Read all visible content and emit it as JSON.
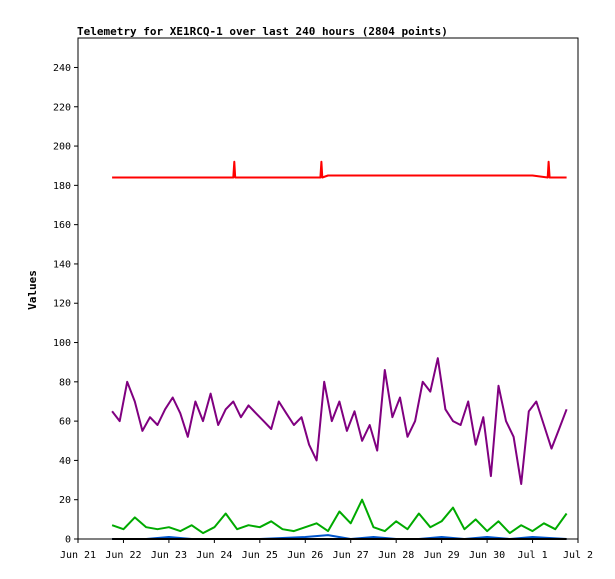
{
  "chart_data": {
    "type": "line",
    "title": "Telemetry for XE1RCQ-1 over last 240 hours (2804 points)",
    "xlabel": "",
    "ylabel": "Values",
    "xlim": [
      "2023-06-21",
      "2023-07-02"
    ],
    "ylim": [
      0,
      255
    ],
    "x_ticks": [
      "Jun 21",
      "Jun 22",
      "Jun 23",
      "Jun 24",
      "Jun 25",
      "Jun 26",
      "Jun 27",
      "Jun 28",
      "Jun 29",
      "Jun 30",
      "Jul 1",
      "Jul 2"
    ],
    "y_ticks": [
      0,
      20,
      40,
      60,
      80,
      100,
      120,
      140,
      160,
      180,
      200,
      220,
      240
    ],
    "grid": false,
    "legend": "none",
    "series": [
      {
        "color": "#ff0000",
        "x": [
          "2023-06-21T18:00",
          "2023-06-22T00:00",
          "2023-06-22T12:00",
          "2023-06-23T00:00",
          "2023-06-23T12:00",
          "2023-06-24T00:00",
          "2023-06-24T10:00",
          "2023-06-24T10:30",
          "2023-06-24T11:00",
          "2023-06-25T00:00",
          "2023-06-25T12:00",
          "2023-06-26T00:00",
          "2023-06-26T08:00",
          "2023-06-26T08:30",
          "2023-06-26T09:00",
          "2023-06-26T12:00",
          "2023-06-27T00:00",
          "2023-06-27T12:00",
          "2023-06-28T00:00",
          "2023-06-28T12:00",
          "2023-06-29T00:00",
          "2023-06-29T12:00",
          "2023-06-30T00:00",
          "2023-06-30T12:00",
          "2023-07-01T00:00",
          "2023-07-01T08:00",
          "2023-07-01T08:30",
          "2023-07-01T09:00",
          "2023-07-01T18:00"
        ],
        "y": [
          184,
          184,
          184,
          184,
          184,
          184,
          184,
          192,
          184,
          184,
          184,
          184,
          184,
          192,
          184,
          185,
          185,
          185,
          185,
          185,
          185,
          185,
          185,
          185,
          185,
          184,
          192,
          184,
          184
        ]
      },
      {
        "color": "#800080",
        "x": [
          "2023-06-21T18:00",
          "2023-06-21T22:00",
          "2023-06-22T02:00",
          "2023-06-22T06:00",
          "2023-06-22T10:00",
          "2023-06-22T14:00",
          "2023-06-22T18:00",
          "2023-06-22T22:00",
          "2023-06-23T02:00",
          "2023-06-23T06:00",
          "2023-06-23T10:00",
          "2023-06-23T14:00",
          "2023-06-23T18:00",
          "2023-06-23T22:00",
          "2023-06-24T02:00",
          "2023-06-24T06:00",
          "2023-06-24T10:00",
          "2023-06-24T14:00",
          "2023-06-24T18:00",
          "2023-06-24T22:00",
          "2023-06-25T02:00",
          "2023-06-25T06:00",
          "2023-06-25T10:00",
          "2023-06-25T14:00",
          "2023-06-25T18:00",
          "2023-06-25T22:00",
          "2023-06-26T02:00",
          "2023-06-26T06:00",
          "2023-06-26T10:00",
          "2023-06-26T14:00",
          "2023-06-26T18:00",
          "2023-06-26T22:00",
          "2023-06-27T02:00",
          "2023-06-27T06:00",
          "2023-06-27T10:00",
          "2023-06-27T14:00",
          "2023-06-27T18:00",
          "2023-06-27T22:00",
          "2023-06-28T02:00",
          "2023-06-28T06:00",
          "2023-06-28T10:00",
          "2023-06-28T14:00",
          "2023-06-28T18:00",
          "2023-06-28T22:00",
          "2023-06-29T02:00",
          "2023-06-29T06:00",
          "2023-06-29T10:00",
          "2023-06-29T14:00",
          "2023-06-29T18:00",
          "2023-06-29T22:00",
          "2023-06-30T02:00",
          "2023-06-30T06:00",
          "2023-06-30T10:00",
          "2023-06-30T14:00",
          "2023-06-30T18:00",
          "2023-06-30T22:00",
          "2023-07-01T02:00",
          "2023-07-01T06:00",
          "2023-07-01T10:00",
          "2023-07-01T14:00",
          "2023-07-01T18:00"
        ],
        "y": [
          65,
          60,
          80,
          70,
          55,
          62,
          58,
          66,
          72,
          64,
          52,
          70,
          60,
          74,
          58,
          66,
          70,
          62,
          68,
          64,
          60,
          56,
          70,
          64,
          58,
          62,
          48,
          40,
          80,
          60,
          70,
          55,
          65,
          50,
          58,
          45,
          86,
          62,
          72,
          52,
          60,
          80,
          75,
          92,
          66,
          60,
          58,
          70,
          48,
          62,
          32,
          78,
          60,
          52,
          28,
          65,
          70,
          58,
          46,
          56,
          66
        ]
      },
      {
        "color": "#00aa00",
        "x": [
          "2023-06-21T18:00",
          "2023-06-22T00:00",
          "2023-06-22T06:00",
          "2023-06-22T12:00",
          "2023-06-22T18:00",
          "2023-06-23T00:00",
          "2023-06-23T06:00",
          "2023-06-23T12:00",
          "2023-06-23T18:00",
          "2023-06-24T00:00",
          "2023-06-24T06:00",
          "2023-06-24T12:00",
          "2023-06-24T18:00",
          "2023-06-25T00:00",
          "2023-06-25T06:00",
          "2023-06-25T12:00",
          "2023-06-25T18:00",
          "2023-06-26T00:00",
          "2023-06-26T06:00",
          "2023-06-26T12:00",
          "2023-06-26T18:00",
          "2023-06-27T00:00",
          "2023-06-27T06:00",
          "2023-06-27T12:00",
          "2023-06-27T18:00",
          "2023-06-28T00:00",
          "2023-06-28T06:00",
          "2023-06-28T12:00",
          "2023-06-28T18:00",
          "2023-06-29T00:00",
          "2023-06-29T06:00",
          "2023-06-29T12:00",
          "2023-06-29T18:00",
          "2023-06-30T00:00",
          "2023-06-30T06:00",
          "2023-06-30T12:00",
          "2023-06-30T18:00",
          "2023-07-01T00:00",
          "2023-07-01T06:00",
          "2023-07-01T12:00",
          "2023-07-01T18:00"
        ],
        "y": [
          7,
          5,
          11,
          6,
          5,
          6,
          4,
          7,
          3,
          6,
          13,
          5,
          7,
          6,
          9,
          5,
          4,
          6,
          8,
          4,
          14,
          8,
          20,
          6,
          4,
          9,
          5,
          13,
          6,
          9,
          16,
          5,
          10,
          4,
          9,
          3,
          7,
          4,
          8,
          5,
          13
        ]
      },
      {
        "color": "#0055cc",
        "x": [
          "2023-06-21T18:00",
          "2023-06-22T12:00",
          "2023-06-23T00:00",
          "2023-06-23T12:00",
          "2023-06-24T00:00",
          "2023-06-25T00:00",
          "2023-06-26T00:00",
          "2023-06-26T12:00",
          "2023-06-27T00:00",
          "2023-06-27T12:00",
          "2023-06-28T00:00",
          "2023-06-28T12:00",
          "2023-06-29T00:00",
          "2023-06-29T12:00",
          "2023-06-30T00:00",
          "2023-06-30T12:00",
          "2023-07-01T00:00",
          "2023-07-01T18:00"
        ],
        "y": [
          0,
          0,
          1,
          0,
          0,
          0,
          1,
          2,
          0,
          1,
          0,
          0,
          1,
          0,
          1,
          0,
          1,
          0
        ]
      },
      {
        "color": "#000000",
        "x": [
          "2023-06-21T18:00",
          "2023-07-01T18:00"
        ],
        "y": [
          0,
          0
        ]
      }
    ]
  }
}
